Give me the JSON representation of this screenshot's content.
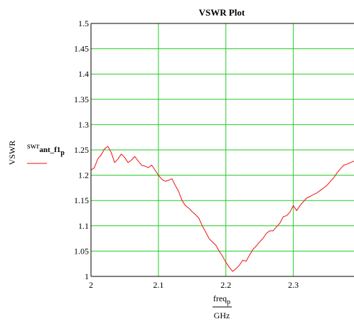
{
  "chart_data": {
    "type": "line",
    "title": "VSWR Plot",
    "ylabel": "VSWR",
    "xlabel_numerator": "freq",
    "xlabel_numerator_sub": "p",
    "xlabel_denominator": "GHz",
    "legend": {
      "name": "swr",
      "sub": "ant_f1",
      "subsub": "p"
    },
    "xlim": [
      2.0,
      2.39
    ],
    "ylim": [
      1.0,
      1.5
    ],
    "x_ticks": [
      {
        "value": 2.0,
        "label": "2"
      },
      {
        "value": 2.1,
        "label": "2.1"
      },
      {
        "value": 2.2,
        "label": "2.2"
      },
      {
        "value": 2.3,
        "label": "2.3"
      }
    ],
    "y_ticks": [
      {
        "value": 1.0,
        "label": "1"
      },
      {
        "value": 1.05,
        "label": "1.05"
      },
      {
        "value": 1.1,
        "label": "1.1"
      },
      {
        "value": 1.15,
        "label": "1.15"
      },
      {
        "value": 1.2,
        "label": "1.2"
      },
      {
        "value": 1.25,
        "label": "1.25"
      },
      {
        "value": 1.3,
        "label": "1.3"
      },
      {
        "value": 1.35,
        "label": "1.35"
      },
      {
        "value": 1.4,
        "label": "1.4"
      },
      {
        "value": 1.45,
        "label": "1.45"
      },
      {
        "value": 1.5,
        "label": "1.5"
      }
    ],
    "grid": true,
    "colors": {
      "grid": "#22cc22",
      "series": "#ee1111",
      "axes": "#000000",
      "background": "#ffffff"
    },
    "series": [
      {
        "x": [
          2.0,
          2.005,
          2.01,
          2.015,
          2.02,
          2.025,
          2.03,
          2.035,
          2.04,
          2.045,
          2.05,
          2.055,
          2.06,
          2.065,
          2.07,
          2.075,
          2.08,
          2.085,
          2.09,
          2.095,
          2.1,
          2.105,
          2.11,
          2.115,
          2.12,
          2.125,
          2.13,
          2.135,
          2.14,
          2.145,
          2.15,
          2.155,
          2.16,
          2.165,
          2.17,
          2.175,
          2.18,
          2.185,
          2.19,
          2.195,
          2.2,
          2.205,
          2.21,
          2.215,
          2.22,
          2.225,
          2.23,
          2.235,
          2.24,
          2.245,
          2.25,
          2.255,
          2.26,
          2.265,
          2.27,
          2.275,
          2.28,
          2.285,
          2.29,
          2.295,
          2.3,
          2.305,
          2.31,
          2.315,
          2.32,
          2.325,
          2.33,
          2.335,
          2.34,
          2.345,
          2.35,
          2.355,
          2.36,
          2.365,
          2.37,
          2.375,
          2.38,
          2.385,
          2.39
        ],
        "y": [
          1.21,
          1.215,
          1.232,
          1.24,
          1.252,
          1.257,
          1.245,
          1.225,
          1.232,
          1.242,
          1.235,
          1.225,
          1.23,
          1.237,
          1.228,
          1.22,
          1.218,
          1.215,
          1.22,
          1.21,
          1.2,
          1.192,
          1.188,
          1.19,
          1.193,
          1.18,
          1.168,
          1.15,
          1.14,
          1.135,
          1.128,
          1.122,
          1.115,
          1.1,
          1.088,
          1.075,
          1.068,
          1.062,
          1.05,
          1.04,
          1.028,
          1.018,
          1.01,
          1.015,
          1.022,
          1.032,
          1.03,
          1.042,
          1.053,
          1.06,
          1.068,
          1.075,
          1.085,
          1.09,
          1.09,
          1.098,
          1.105,
          1.118,
          1.12,
          1.127,
          1.14,
          1.13,
          1.14,
          1.148,
          1.155,
          1.158,
          1.162,
          1.165,
          1.17,
          1.175,
          1.18,
          1.188,
          1.195,
          1.205,
          1.213,
          1.22,
          1.222,
          1.225,
          1.228
        ]
      }
    ]
  }
}
